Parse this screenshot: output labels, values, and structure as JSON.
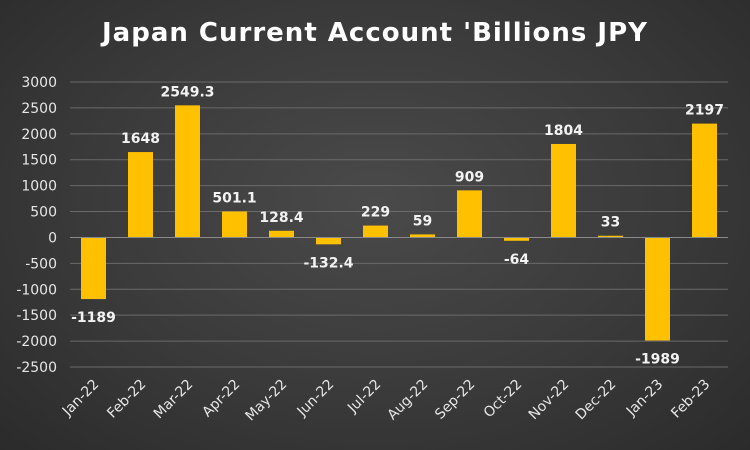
{
  "chart_data": {
    "type": "bar",
    "title": "Japan Current Account 'Billions JPY",
    "categories": [
      "Jan-22",
      "Feb-22",
      "Mar-22",
      "Apr-22",
      "May-22",
      "Jun-22",
      "Jul-22",
      "Aug-22",
      "Sep-22",
      "Oct-22",
      "Nov-22",
      "Dec-22",
      "Jan-23",
      "Feb-23"
    ],
    "values": [
      -1189,
      1648,
      2549.3,
      501.1,
      128.4,
      -132.4,
      229,
      59,
      909,
      -64,
      1804,
      33,
      -1989,
      2197
    ],
    "data_labels": [
      "-1189",
      "1648",
      "2549.3",
      "501.1",
      "128.4",
      "-132.4",
      "229",
      "59",
      "909",
      "-64",
      "1804",
      "33",
      "-1989",
      "2197"
    ],
    "y_ticks": [
      3000,
      2500,
      2000,
      1500,
      1000,
      500,
      0,
      -500,
      -1000,
      -1500,
      -2000,
      -2500
    ],
    "ylim": [
      -2500,
      3000
    ],
    "xlabel": "",
    "ylabel": "",
    "grid": true,
    "bar_color": "#FFC000"
  }
}
